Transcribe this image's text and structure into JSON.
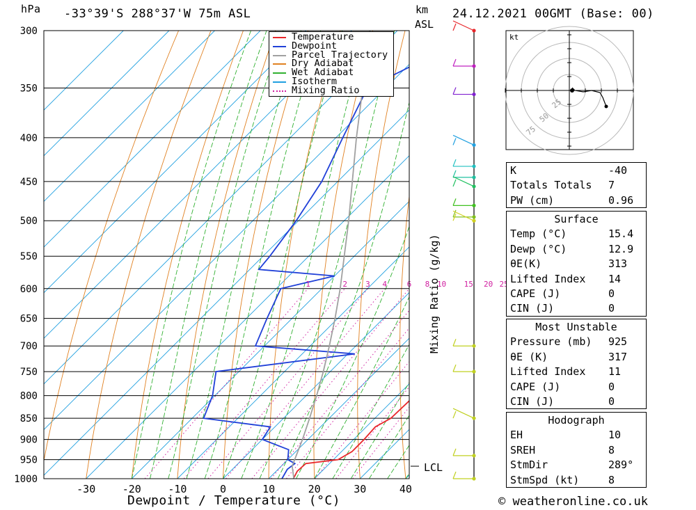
{
  "header": {
    "units": "hPa",
    "location": "-33°39'S  288°37'W  75m  ASL",
    "km_label": "km",
    "asl_label": "ASL",
    "datetime": "24.12.2021  00GMT  (Base: 00)"
  },
  "legend": {
    "items": [
      {
        "label": "Temperature",
        "color": "#e8262a",
        "style": "solid"
      },
      {
        "label": "Dewpoint",
        "color": "#2040d8",
        "style": "solid"
      },
      {
        "label": "Parcel Trajectory",
        "color": "#a0a0a0",
        "style": "solid"
      },
      {
        "label": "Dry Adiabat",
        "color": "#e08020",
        "style": "solid"
      },
      {
        "label": "Wet Adiabat",
        "color": "#30b030",
        "style": "solid"
      },
      {
        "label": "Isotherm",
        "color": "#20a0e0",
        "style": "solid"
      },
      {
        "label": "Mixing Ratio",
        "color": "#d020a0",
        "style": "dotted"
      }
    ]
  },
  "chart_data": {
    "type": "line",
    "xlabel": "Dewpoint / Temperature (°C)",
    "ylabel": "hPa",
    "xlim": [
      -40,
      40
    ],
    "ylim": [
      1000,
      300
    ],
    "x_ticks": [
      -30,
      -20,
      -10,
      0,
      10,
      20,
      30,
      40
    ],
    "pressure_levels": [
      300,
      350,
      400,
      450,
      500,
      550,
      600,
      650,
      700,
      750,
      800,
      850,
      900,
      950,
      1000
    ],
    "mixing_ratio_label": "Mixing Ratio (g/kg)",
    "mixing_ratio_values": [
      "1",
      "2",
      "3",
      "4",
      "6",
      "8",
      "10",
      "15",
      "20",
      "25"
    ],
    "lcl_label": "LCL",
    "lcl_pressure": 967,
    "colors": {
      "temperature": "#e8262a",
      "dewpoint": "#2040d8",
      "parcel": "#a0a0a0",
      "dry": "#e08020",
      "wet": "#30b030",
      "isotherm": "#20a0e0",
      "mixing": "#d020a0"
    },
    "series": [
      {
        "name": "Temperature",
        "points": [
          [
            1000,
            15.4
          ],
          [
            980,
            14.6
          ],
          [
            960,
            14.8
          ],
          [
            950,
            21.0
          ],
          [
            930,
            22.3
          ],
          [
            900,
            22.3
          ],
          [
            870,
            22.0
          ],
          [
            850,
            23.5
          ],
          [
            800,
            23.8
          ],
          [
            750,
            23.8
          ],
          [
            700,
            21.5
          ],
          [
            650,
            20.5
          ],
          [
            600,
            16.2
          ],
          [
            550,
            10.3
          ],
          [
            500,
            3.3
          ],
          [
            450,
            -4.5
          ],
          [
            400,
            -13.2
          ],
          [
            350,
            -24.2
          ],
          [
            300,
            -33.0
          ]
        ]
      },
      {
        "name": "Dewpoint",
        "points": [
          [
            1000,
            12.9
          ],
          [
            975,
            12.0
          ],
          [
            960,
            12.4
          ],
          [
            950,
            10.0
          ],
          [
            925,
            8.0
          ],
          [
            900,
            0.0
          ],
          [
            870,
            -1.0
          ],
          [
            850,
            -17.5
          ],
          [
            800,
            -20.5
          ],
          [
            750,
            -25.0
          ],
          [
            715,
            1.5
          ],
          [
            700,
            -22.0
          ],
          [
            650,
            -25.5
          ],
          [
            600,
            -29.0
          ],
          [
            580,
            -20.0
          ],
          [
            570,
            -38.0
          ],
          [
            550,
            -38.5
          ],
          [
            500,
            -40.5
          ],
          [
            450,
            -43.5
          ],
          [
            400,
            -48.5
          ],
          [
            350,
            -54.0
          ],
          [
            310,
            -44.0
          ],
          [
            300,
            -49.5
          ]
        ]
      },
      {
        "name": "Parcel Trajectory",
        "points": [
          [
            1000,
            15.5
          ],
          [
            967,
            12.4
          ],
          [
            950,
            11.5
          ],
          [
            900,
            8.8
          ],
          [
            850,
            5.7
          ],
          [
            800,
            2.3
          ],
          [
            750,
            -1.5
          ],
          [
            700,
            -5.8
          ],
          [
            650,
            -10.6
          ],
          [
            600,
            -16.0
          ],
          [
            550,
            -22.2
          ],
          [
            500,
            -29.0
          ],
          [
            450,
            -36.8
          ],
          [
            400,
            -45.5
          ],
          [
            350,
            -55.0
          ],
          [
            300,
            -66.0
          ]
        ]
      }
    ]
  },
  "hodograph": {
    "unit_label": "kt",
    "ring_labels": [
      "25",
      "50",
      "75"
    ]
  },
  "wind_profile": {
    "barb_colors": [
      "#e8262a",
      "#c020c0",
      "#8020d0",
      "#20a0e0",
      "#20c0c0",
      "#20c0a0",
      "#20c060",
      "#40c020",
      "#80c020",
      "#d0d020",
      "#c0d020"
    ]
  },
  "indices": {
    "basic": [
      {
        "label": "K",
        "value": "-40"
      },
      {
        "label": "Totals Totals",
        "value": "7"
      },
      {
        "label": "PW (cm)",
        "value": "0.96"
      }
    ],
    "surface_title": "Surface",
    "surface": [
      {
        "label": "Temp (°C)",
        "value": "15.4"
      },
      {
        "label": "Dewp (°C)",
        "value": "12.9"
      },
      {
        "label": "θE(K)",
        "value": "313"
      },
      {
        "label": "Lifted Index",
        "value": "14"
      },
      {
        "label": "CAPE (J)",
        "value": "0"
      },
      {
        "label": "CIN (J)",
        "value": "0"
      }
    ],
    "mu_title": "Most Unstable",
    "mu": [
      {
        "label": "Pressure (mb)",
        "value": "925"
      },
      {
        "label": "θE (K)",
        "value": "317"
      },
      {
        "label": "Lifted Index",
        "value": "11"
      },
      {
        "label": "CAPE (J)",
        "value": "0"
      },
      {
        "label": "CIN (J)",
        "value": "0"
      }
    ],
    "hodo_title": "Hodograph",
    "hodo": [
      {
        "label": "EH",
        "value": "10"
      },
      {
        "label": "SREH",
        "value": "8"
      },
      {
        "label": "StmDir",
        "value": "289°"
      },
      {
        "label": "StmSpd (kt)",
        "value": "8"
      }
    ]
  },
  "footer": {
    "credit": "© weatheronline.co.uk"
  }
}
